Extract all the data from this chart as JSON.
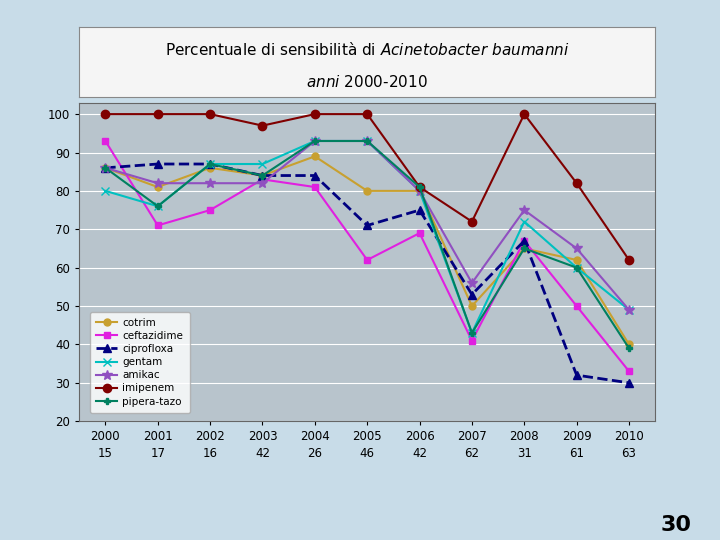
{
  "title_text1": "Percentuale di sensibilità di ",
  "title_italic": "Acinetobacter baumanni",
  "title_line2": "anni 2000-2010",
  "years": [
    2000,
    2001,
    2002,
    2003,
    2004,
    2005,
    2006,
    2007,
    2008,
    2009,
    2010
  ],
  "n_values": [
    15,
    17,
    16,
    42,
    26,
    46,
    42,
    62,
    31,
    61,
    63
  ],
  "series": {
    "cotrim": {
      "values": [
        86,
        81,
        86,
        84,
        89,
        80,
        80,
        50,
        65,
        62,
        40
      ],
      "color": "#c8a030",
      "marker": "o",
      "linestyle": "-",
      "linewidth": 1.5,
      "markersize": 5
    },
    "ceftazidime": {
      "values": [
        93,
        71,
        75,
        83,
        81,
        62,
        69,
        41,
        67,
        50,
        33
      ],
      "color": "#e020e0",
      "marker": "s",
      "linestyle": "-",
      "linewidth": 1.5,
      "markersize": 5
    },
    "ciprofloxa": {
      "values": [
        86,
        87,
        87,
        84,
        84,
        71,
        75,
        53,
        67,
        32,
        30
      ],
      "color": "#000080",
      "marker": "^",
      "linestyle": "--",
      "linewidth": 2.0,
      "markersize": 6
    },
    "gentam": {
      "values": [
        80,
        76,
        87,
        87,
        93,
        93,
        80,
        43,
        72,
        60,
        49
      ],
      "color": "#00c0c0",
      "marker": "x",
      "linestyle": "-",
      "linewidth": 1.5,
      "markersize": 6
    },
    "amikac": {
      "values": [
        86,
        82,
        82,
        82,
        93,
        93,
        80,
        56,
        75,
        65,
        49
      ],
      "color": "#9050c0",
      "marker": "*",
      "linestyle": "-",
      "linewidth": 1.5,
      "markersize": 7
    },
    "imipenem": {
      "values": [
        100,
        100,
        100,
        97,
        100,
        100,
        81,
        72,
        100,
        82,
        62
      ],
      "color": "#800000",
      "marker": "o",
      "linestyle": "-",
      "linewidth": 1.5,
      "markersize": 6
    },
    "pipera-tazo": {
      "values": [
        86,
        76,
        87,
        84,
        93,
        93,
        81,
        43,
        65,
        60,
        39
      ],
      "color": "#008060",
      "marker": "P",
      "linestyle": "-",
      "linewidth": 1.5,
      "markersize": 5
    }
  },
  "ylim": [
    20,
    103
  ],
  "yticks": [
    20,
    30,
    40,
    50,
    60,
    70,
    80,
    90,
    100
  ],
  "outer_bg": "#c8dce8",
  "plot_bg": "#b8c4cc",
  "title_bg": "#f5f5f5",
  "grid_color": "#d8dde0"
}
